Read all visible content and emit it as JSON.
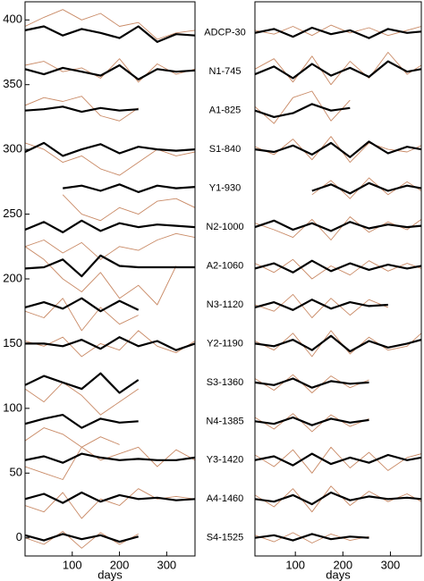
{
  "chart_data": [
    {
      "type": "line",
      "xlabel": "days",
      "xlim": [
        0,
        360
      ],
      "xticks": [
        100,
        200,
        300
      ],
      "ylim": [
        -14,
        414
      ],
      "yticks": [
        0,
        50,
        100,
        150,
        200,
        250,
        300,
        350,
        400
      ],
      "x": [
        0,
        40,
        80,
        120,
        160,
        200,
        240,
        280,
        320,
        360
      ],
      "annotations": [
        {
          "text": "ADCP-30",
          "y": 390
        },
        {
          "text": "N1-745",
          "y": 360
        },
        {
          "text": "A1-825",
          "y": 330
        },
        {
          "text": "S1-840",
          "y": 300
        },
        {
          "text": "Y1-930",
          "y": 270
        },
        {
          "text": "N2-1000",
          "y": 240
        },
        {
          "text": "A2-1060",
          "y": 210
        },
        {
          "text": "N3-1120",
          "y": 180
        },
        {
          "text": "Y2-1190",
          "y": 150
        },
        {
          "text": "S3-1360",
          "y": 120
        },
        {
          "text": "N4-1385",
          "y": 90
        },
        {
          "text": "Y3-1420",
          "y": 60
        },
        {
          "text": "A4-1460",
          "y": 30
        },
        {
          "text": "S4-1525",
          "y": 0
        }
      ],
      "series": [
        {
          "color": "#c98a66",
          "values": [
            395,
            402,
            408,
            400,
            405,
            395,
            398,
            385,
            390,
            392
          ]
        },
        {
          "color": "#000000",
          "values": [
            392,
            395,
            388,
            393,
            390,
            386,
            395,
            383,
            389,
            388
          ]
        },
        {
          "color": "#c98a66",
          "values": [
            365,
            368,
            360,
            363,
            355,
            370,
            352,
            366,
            358,
            362
          ]
        },
        {
          "color": "#000000",
          "values": [
            362,
            358,
            363,
            360,
            357,
            365,
            354,
            362,
            360,
            361
          ]
        },
        {
          "color": "#c98a66",
          "values": [
            334,
            340,
            337,
            341,
            326,
            322,
            332,
            null,
            null,
            null
          ]
        },
        {
          "color": "#000000",
          "values": [
            330,
            331,
            333,
            329,
            332,
            330,
            331,
            null,
            null,
            null
          ]
        },
        {
          "color": "#c98a66",
          "values": [
            305,
            300,
            290,
            295,
            285,
            280,
            290,
            300,
            295,
            298
          ]
        },
        {
          "color": "#000000",
          "values": [
            298,
            305,
            295,
            300,
            304,
            297,
            302,
            300,
            299,
            300
          ]
        },
        {
          "color": "#c98a66",
          "values": [
            null,
            null,
            265,
            250,
            245,
            255,
            250,
            260,
            262,
            255
          ]
        },
        {
          "color": "#000000",
          "values": [
            null,
            null,
            270,
            272,
            268,
            273,
            267,
            272,
            270,
            271
          ]
        },
        {
          "color": "#c98a66",
          "values": [
            225,
            230,
            220,
            228,
            215,
            225,
            222,
            230,
            235,
            232
          ]
        },
        {
          "color": "#000000",
          "values": [
            238,
            244,
            236,
            245,
            237,
            243,
            240,
            242,
            241,
            240
          ]
        },
        {
          "color": "#c98a66",
          "values": [
            225,
            215,
            200,
            190,
            205,
            185,
            195,
            180,
            210,
            null
          ]
        },
        {
          "color": "#000000",
          "values": [
            208,
            209,
            215,
            202,
            218,
            210,
            209,
            209,
            209,
            209
          ]
        },
        {
          "color": "#c98a66",
          "values": [
            175,
            170,
            185,
            160,
            178,
            165,
            172,
            null,
            null,
            null
          ]
        },
        {
          "color": "#000000",
          "values": [
            178,
            182,
            177,
            185,
            175,
            183,
            176,
            null,
            null,
            null
          ]
        },
        {
          "color": "#c98a66",
          "values": [
            152,
            148,
            155,
            140,
            150,
            145,
            160,
            148,
            143,
            152
          ]
        },
        {
          "color": "#000000",
          "values": [
            150,
            150,
            148,
            153,
            146,
            155,
            148,
            152,
            145,
            150
          ]
        },
        {
          "color": "#c98a66",
          "values": [
            115,
            105,
            120,
            110,
            95,
            105,
            115,
            null,
            null,
            null
          ]
        },
        {
          "color": "#000000",
          "values": [
            118,
            125,
            120,
            115,
            127,
            112,
            122,
            null,
            null,
            null
          ]
        },
        {
          "color": "#c98a66",
          "values": [
            75,
            85,
            80,
            70,
            78,
            72,
            null,
            null,
            null,
            null
          ]
        },
        {
          "color": "#000000",
          "values": [
            88,
            92,
            95,
            85,
            92,
            89,
            90,
            null,
            null,
            null
          ]
        },
        {
          "color": "#c98a66",
          "values": [
            55,
            50,
            45,
            70,
            60,
            65,
            70,
            55,
            68,
            60
          ]
        },
        {
          "color": "#000000",
          "values": [
            60,
            63,
            58,
            65,
            62,
            60,
            61,
            60,
            60,
            62
          ]
        },
        {
          "color": "#c98a66",
          "values": [
            25,
            20,
            35,
            15,
            30,
            25,
            38,
            30,
            32,
            30
          ]
        },
        {
          "color": "#000000",
          "values": [
            30,
            34,
            27,
            35,
            28,
            33,
            30,
            31,
            29,
            30
          ]
        },
        {
          "color": "#c98a66",
          "values": [
            0,
            -5,
            5,
            -8,
            4,
            -5,
            3,
            null,
            null,
            null
          ]
        },
        {
          "color": "#000000",
          "values": [
            2,
            -2,
            3,
            -1,
            2,
            -3,
            1,
            null,
            null,
            null
          ]
        }
      ]
    },
    {
      "type": "line",
      "xlabel": "days",
      "xlim": [
        15,
        365
      ],
      "xticks": [
        100,
        200,
        300
      ],
      "ylim": [
        -14,
        414
      ],
      "x": [
        15,
        55,
        95,
        135,
        175,
        215,
        255,
        295,
        335,
        365
      ],
      "series": [
        {
          "color": "#c98a66",
          "values": [
            392,
            389,
            395,
            388,
            396,
            390,
            394,
            388,
            392,
            395
          ]
        },
        {
          "color": "#000000",
          "values": [
            390,
            393,
            387,
            394,
            389,
            392,
            386,
            393,
            390,
            391
          ]
        },
        {
          "color": "#c98a66",
          "values": [
            362,
            370,
            352,
            372,
            350,
            368,
            355,
            375,
            358,
            365
          ]
        },
        {
          "color": "#000000",
          "values": [
            358,
            364,
            355,
            366,
            357,
            363,
            356,
            368,
            360,
            362
          ]
        },
        {
          "color": "#c98a66",
          "values": [
            333,
            320,
            340,
            345,
            322,
            338,
            null,
            null,
            null,
            null
          ]
        },
        {
          "color": "#000000",
          "values": [
            330,
            325,
            328,
            335,
            330,
            332,
            null,
            null,
            null,
            null
          ]
        },
        {
          "color": "#c98a66",
          "values": [
            302,
            296,
            308,
            292,
            310,
            290,
            305,
            300,
            298,
            303
          ]
        },
        {
          "color": "#000000",
          "values": [
            300,
            298,
            303,
            296,
            305,
            294,
            306,
            297,
            302,
            300
          ]
        },
        {
          "color": "#c98a66",
          "values": [
            null,
            null,
            null,
            265,
            276,
            262,
            278,
            265,
            275,
            268
          ]
        },
        {
          "color": "#000000",
          "values": [
            null,
            null,
            null,
            268,
            273,
            266,
            274,
            268,
            272,
            270
          ]
        },
        {
          "color": "#c98a66",
          "values": [
            243,
            238,
            232,
            246,
            230,
            248,
            236,
            244,
            238,
            246
          ]
        },
        {
          "color": "#000000",
          "values": [
            240,
            245,
            238,
            243,
            237,
            244,
            239,
            242,
            240,
            241
          ]
        },
        {
          "color": "#c98a66",
          "values": [
            212,
            205,
            215,
            200,
            210,
            203,
            214,
            206,
            212,
            208
          ]
        },
        {
          "color": "#000000",
          "values": [
            208,
            212,
            205,
            214,
            206,
            212,
            207,
            211,
            208,
            210
          ]
        },
        {
          "color": "#c98a66",
          "values": [
            180,
            175,
            188,
            170,
            185,
            172,
            184,
            178,
            null,
            null
          ]
        },
        {
          "color": "#000000",
          "values": [
            178,
            182,
            176,
            184,
            177,
            182,
            179,
            180,
            null,
            null
          ]
        },
        {
          "color": "#c98a66",
          "values": [
            152,
            145,
            158,
            140,
            160,
            142,
            155,
            145,
            148,
            158
          ]
        },
        {
          "color": "#000000",
          "values": [
            150,
            148,
            153,
            145,
            156,
            144,
            152,
            147,
            150,
            153
          ]
        },
        {
          "color": "#c98a66",
          "values": [
            123,
            114,
            126,
            112,
            125,
            116,
            122,
            null,
            null,
            null
          ]
        },
        {
          "color": "#000000",
          "values": [
            120,
            118,
            123,
            116,
            121,
            119,
            120,
            null,
            null,
            null
          ]
        },
        {
          "color": "#c98a66",
          "values": [
            93,
            84,
            96,
            82,
            95,
            86,
            92,
            null,
            null,
            null
          ]
        },
        {
          "color": "#000000",
          "values": [
            90,
            88,
            93,
            87,
            92,
            89,
            91,
            null,
            null,
            null
          ]
        },
        {
          "color": "#c98a66",
          "values": [
            64,
            55,
            68,
            50,
            70,
            54,
            66,
            52,
            62,
            65
          ]
        },
        {
          "color": "#000000",
          "values": [
            60,
            63,
            56,
            65,
            57,
            62,
            58,
            64,
            60,
            62
          ]
        },
        {
          "color": "#c98a66",
          "values": [
            33,
            24,
            38,
            20,
            40,
            25,
            36,
            28,
            34,
            28
          ]
        },
        {
          "color": "#000000",
          "values": [
            30,
            28,
            33,
            26,
            35,
            29,
            32,
            30,
            31,
            30
          ]
        },
        {
          "color": "#c98a66",
          "values": [
            2,
            -3,
            4,
            -4,
            3,
            -2,
            1,
            null,
            null,
            null
          ]
        },
        {
          "color": "#000000",
          "values": [
            0,
            2,
            -2,
            3,
            -1,
            1,
            0,
            null,
            null,
            null
          ]
        }
      ]
    }
  ]
}
